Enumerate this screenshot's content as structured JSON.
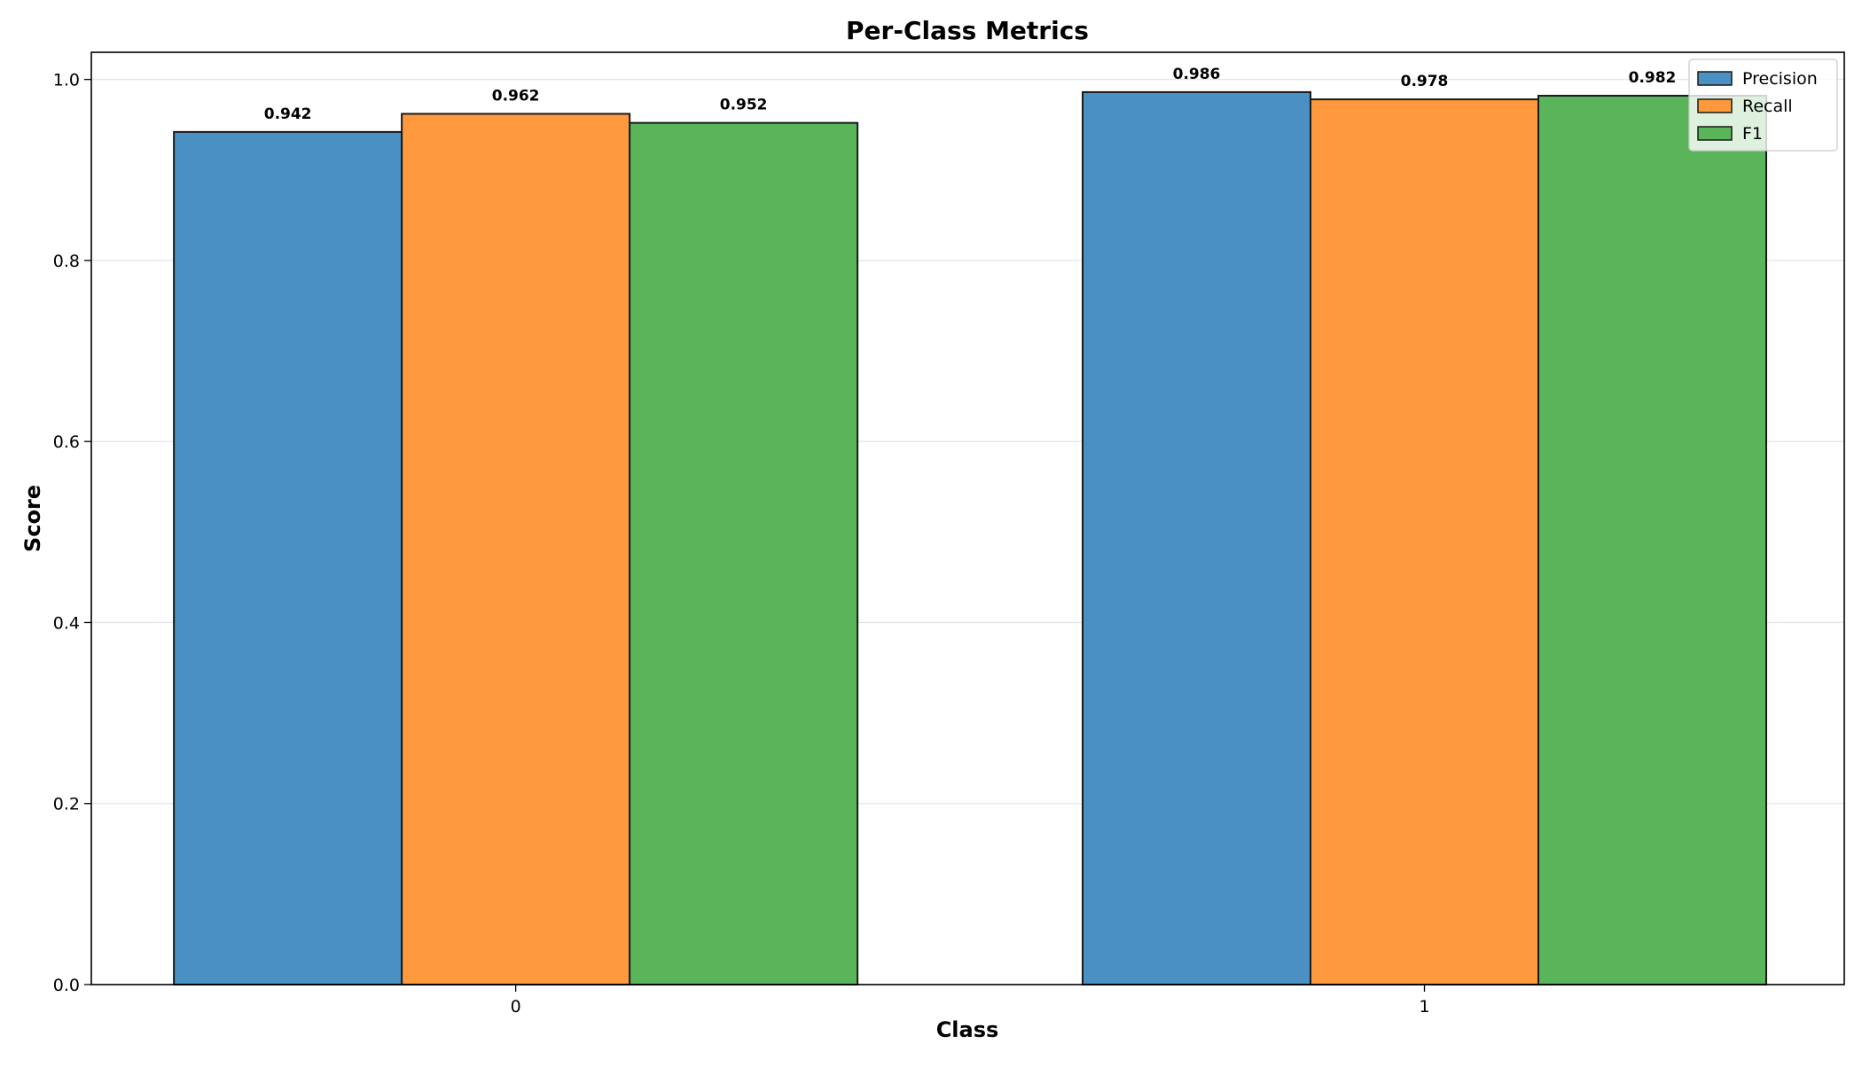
{
  "chart_data": {
    "type": "bar",
    "title": "Per-Class Metrics",
    "xlabel": "Class",
    "ylabel": "Score",
    "categories": [
      "0",
      "1"
    ],
    "series": [
      {
        "name": "Precision",
        "values": [
          0.942,
          0.986
        ],
        "color": "#4a90c2"
      },
      {
        "name": "Recall",
        "values": [
          0.962,
          0.978
        ],
        "color": "#ff993d"
      },
      {
        "name": "F1",
        "values": [
          0.952,
          0.982
        ],
        "color": "#5ab55a"
      }
    ],
    "data_labels": [
      [
        "0.942",
        "0.986"
      ],
      [
        "0.962",
        "0.978"
      ],
      [
        "0.952",
        "0.982"
      ]
    ],
    "ylim": [
      0,
      1.03
    ],
    "yticks": [
      "0.0",
      "0.2",
      "0.4",
      "0.6",
      "0.8",
      "1.0"
    ],
    "grid": true,
    "legend_position": "top-right"
  }
}
